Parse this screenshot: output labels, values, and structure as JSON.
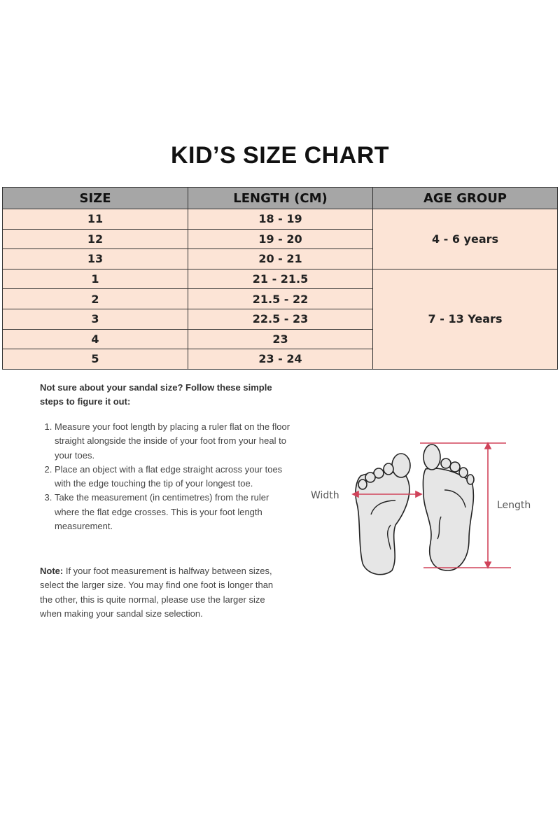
{
  "title": "KID’S SIZE CHART",
  "table": {
    "headers": [
      "SIZE",
      "LENGTH (CM)",
      "AGE GROUP"
    ],
    "rows": [
      {
        "size": "11",
        "length": "18 - 19"
      },
      {
        "size": "12",
        "length": "19 - 20"
      },
      {
        "size": "13",
        "length": "20 - 21"
      },
      {
        "size": "1",
        "length": "21 - 21.5"
      },
      {
        "size": "2",
        "length": "21.5 - 22"
      },
      {
        "size": "3",
        "length": "22.5 - 23"
      },
      {
        "size": "4",
        "length": "23"
      },
      {
        "size": "5",
        "length": "23 - 24"
      }
    ],
    "age_groups": [
      "4 - 6 years",
      "7 - 13 Years"
    ]
  },
  "intro": "Not sure about your sandal size? Follow these simple steps to figure it out:",
  "steps": [
    "Measure your foot length by placing a ruler flat on the floor straight alongside the inside of your foot from your heal to your toes.",
    "Place an object with a flat edge straight across your toes with the edge touching the tip of your longest toe.",
    "Take the measurement (in centimetres) from the ruler where the flat edge crosses. This is your foot length measurement."
  ],
  "note": {
    "label": "Note:",
    "text": " If your foot measurement is halfway between sizes, select the larger size. You may find one foot is longer than the other, this is quite normal, please use the larger size when making your sandal size selection."
  },
  "diagram": {
    "width_label": "Width",
    "length_label": "Length"
  },
  "colors": {
    "header_bg": "#a6a6a6",
    "row_bg": "#fce4d6",
    "measure_line": "#d0435a"
  }
}
